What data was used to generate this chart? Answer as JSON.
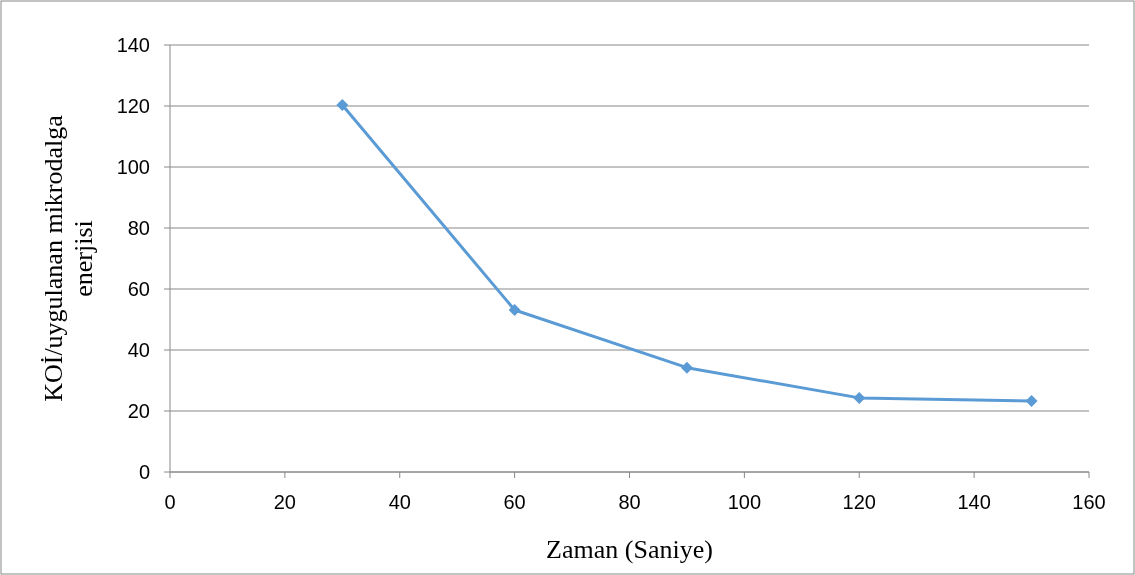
{
  "chart_data": {
    "type": "line",
    "xlabel": "Zaman (Saniye)",
    "ylabel": "KOİ/uygulanan mikrodalga enerjisi",
    "x": [
      30,
      60,
      90,
      120,
      150
    ],
    "series": [
      {
        "color": "#5b9bd5",
        "values": [
          120.3,
          53.1,
          34.2,
          24.3,
          23.3
        ]
      }
    ],
    "xlim": [
      0,
      160
    ],
    "xticks": [
      0,
      20,
      40,
      60,
      80,
      100,
      120,
      140,
      160
    ],
    "ylim": [
      0,
      140
    ],
    "yticks": [
      0,
      20,
      40,
      60,
      80,
      100,
      120,
      140
    ],
    "grid": "y",
    "marker": "diamond",
    "line_style": "solid"
  }
}
